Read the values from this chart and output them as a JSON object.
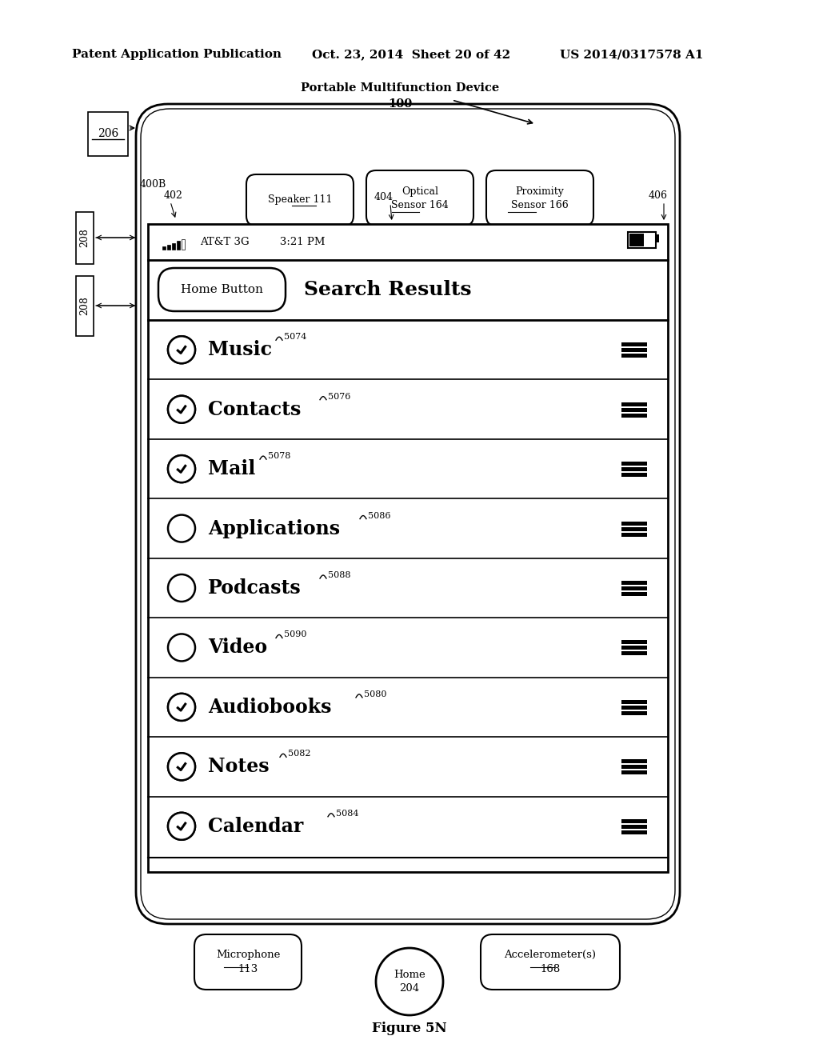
{
  "bg_color": "#ffffff",
  "header_text": "Patent Application Publication",
  "header_date": "Oct. 23, 2014  Sheet 20 of 42",
  "header_patent": "US 2014/0317578 A1",
  "figure_label": "Figure 5N",
  "device_label": "Portable Multifunction Device",
  "device_number": "100",
  "label_206": "206",
  "label_400B": "400B",
  "label_402": "402",
  "label_404": "404",
  "label_406": "406",
  "label_208a": "208",
  "label_208b": "208",
  "status_bar": "AT&T 3G         3:21 PM",
  "home_btn_text": "Home Button",
  "search_results_text": "Search Results",
  "items": [
    {
      "label": "Music",
      "ref": "5074",
      "checked": true
    },
    {
      "label": "Contacts",
      "ref": "5076",
      "checked": true
    },
    {
      "label": "Mail",
      "ref": "5078",
      "checked": true
    },
    {
      "label": "Applications",
      "ref": "5086",
      "checked": false
    },
    {
      "label": "Podcasts",
      "ref": "5088",
      "checked": false
    },
    {
      "label": "Video",
      "ref": "5090",
      "checked": false
    },
    {
      "label": "Audiobooks",
      "ref": "5080",
      "checked": true
    },
    {
      "label": "Notes",
      "ref": "5082",
      "checked": true
    },
    {
      "label": "Calendar",
      "ref": "5084",
      "checked": true
    }
  ],
  "speaker_text": "Speaker 111",
  "optical_text": "Optical\nSensor 164",
  "proximity_text": "Proximity\nSensor 166",
  "mic_text": "Microphone\n113",
  "home_btn2_text": "Home\n204",
  "accel_text": "Accelerometer(s)\n168"
}
